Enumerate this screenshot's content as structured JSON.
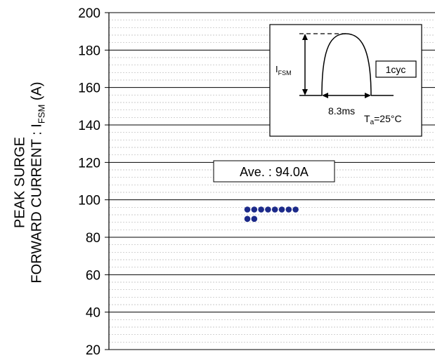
{
  "chart_data": {
    "type": "scatter",
    "ylabel_line1": "PEAK SURGE",
    "ylabel_line2_main": "FORWARD CURRENT : I",
    "ylabel_line2_sub": "FSM",
    "ylabel_line2_unit": " (A)",
    "ylim": [
      20,
      200
    ],
    "yticks": [
      "20",
      "40",
      "60",
      "80",
      "100",
      "120",
      "140",
      "160",
      "180",
      "200"
    ],
    "ytick_values": [
      20,
      40,
      60,
      80,
      100,
      120,
      140,
      160,
      180,
      200
    ],
    "minor_grid_step": 4,
    "grid": true,
    "points": [
      95,
      95,
      95,
      95,
      95,
      95,
      95,
      95,
      90,
      90
    ],
    "point_color": "#1c2a8a",
    "annotation": "Ave. : 94.0A",
    "inset": {
      "ifsm_main": "I",
      "ifsm_sub": "FSM",
      "cycle_label": "1cyc",
      "time_label": "8.3ms",
      "temp_main": "T",
      "temp_sub": "a",
      "temp_value": "=25°C"
    }
  }
}
